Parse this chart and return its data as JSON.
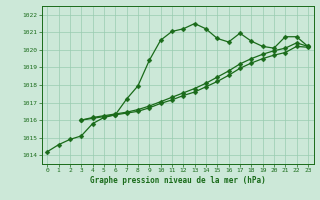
{
  "x_all": [
    0,
    1,
    2,
    3,
    4,
    5,
    6,
    7,
    8,
    9,
    10,
    11,
    12,
    13,
    14,
    15,
    16,
    17,
    18,
    19,
    20,
    21,
    22,
    23
  ],
  "series_upper": [
    1014.2,
    1014.6,
    1014.9,
    1015.1,
    1015.8,
    1016.15,
    1016.3,
    1017.2,
    1017.95,
    1019.4,
    1020.55,
    1021.05,
    1021.2,
    1021.5,
    1021.2,
    1020.65,
    1020.45,
    1020.95,
    1020.5,
    1020.2,
    1020.1,
    1020.75,
    1020.75,
    1020.2
  ],
  "series_mid": [
    null,
    null,
    null,
    1016.0,
    1016.15,
    1016.25,
    1016.35,
    1016.45,
    1016.6,
    1016.8,
    1017.05,
    1017.3,
    1017.55,
    1017.8,
    1018.1,
    1018.45,
    1018.8,
    1019.2,
    1019.5,
    1019.75,
    1019.95,
    1020.1,
    1020.4,
    1020.2
  ],
  "series_low": [
    null,
    null,
    null,
    1016.0,
    1016.1,
    1016.2,
    1016.3,
    1016.4,
    1016.5,
    1016.7,
    1016.95,
    1017.15,
    1017.4,
    1017.6,
    1017.9,
    1018.2,
    1018.55,
    1018.95,
    1019.25,
    1019.5,
    1019.7,
    1019.85,
    1020.2,
    1020.15
  ],
  "line_color": "#1a6b1a",
  "bg_color": "#cce8d8",
  "grid_color": "#99ccb0",
  "xlabel": "Graphe pression niveau de la mer (hPa)",
  "ylim": [
    1013.5,
    1022.5
  ],
  "xlim": [
    -0.5,
    23.5
  ],
  "yticks": [
    1014,
    1015,
    1016,
    1017,
    1018,
    1019,
    1020,
    1021,
    1022
  ],
  "xticks": [
    0,
    1,
    2,
    3,
    4,
    5,
    6,
    7,
    8,
    9,
    10,
    11,
    12,
    13,
    14,
    15,
    16,
    17,
    18,
    19,
    20,
    21,
    22,
    23
  ],
  "markersize": 2.5,
  "linewidth": 0.9
}
